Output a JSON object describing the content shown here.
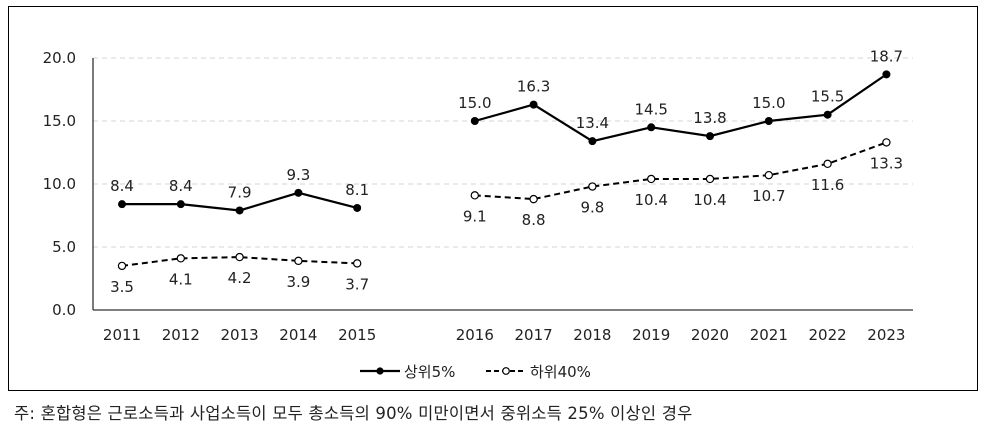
{
  "chart_data": {
    "type": "line",
    "title": "",
    "xlabel": "",
    "ylabel": "",
    "ylim": [
      0,
      20
    ],
    "yticks": [
      "0.0",
      "5.0",
      "10.0",
      "15.0",
      "20.0"
    ],
    "grid": true,
    "legend_position": "bottom",
    "groups": [
      {
        "categories": [
          "2011",
          "2012",
          "2013",
          "2014",
          "2015"
        ]
      },
      {
        "categories": [
          "2016",
          "2017",
          "2018",
          "2019",
          "2020",
          "2021",
          "2022",
          "2023"
        ]
      }
    ],
    "categories": [
      "2011",
      "2012",
      "2013",
      "2014",
      "2015",
      "2016",
      "2017",
      "2018",
      "2019",
      "2020",
      "2021",
      "2022",
      "2023"
    ],
    "series": [
      {
        "name": "상위5%",
        "style": "solid-filled-marker",
        "color": "#000000",
        "values": [
          8.4,
          8.4,
          7.9,
          9.3,
          8.1,
          15.0,
          16.3,
          13.4,
          14.5,
          13.8,
          15.0,
          15.5,
          18.7
        ],
        "labels": [
          "8.4",
          "8.4",
          "7.9",
          "9.3",
          "8.1",
          "15.0",
          "16.3",
          "13.4",
          "14.5",
          "13.8",
          "15.0",
          "15.5",
          "18.7"
        ]
      },
      {
        "name": "하위40%",
        "style": "dashed-open-marker",
        "color": "#000000",
        "values": [
          3.5,
          4.1,
          4.2,
          3.9,
          3.7,
          9.1,
          8.8,
          9.8,
          10.4,
          10.4,
          10.7,
          11.6,
          13.3
        ],
        "labels": [
          "3.5",
          "4.1",
          "4.2",
          "3.9",
          "3.7",
          "9.1",
          "8.8",
          "9.8",
          "10.4",
          "10.4",
          "10.7",
          "11.6",
          "13.3"
        ]
      }
    ]
  },
  "note": "주:  혼합형은 근로소득과 사업소득이 모두 총소득의 90% 미만이면서 중위소득 25% 이상인 경우"
}
